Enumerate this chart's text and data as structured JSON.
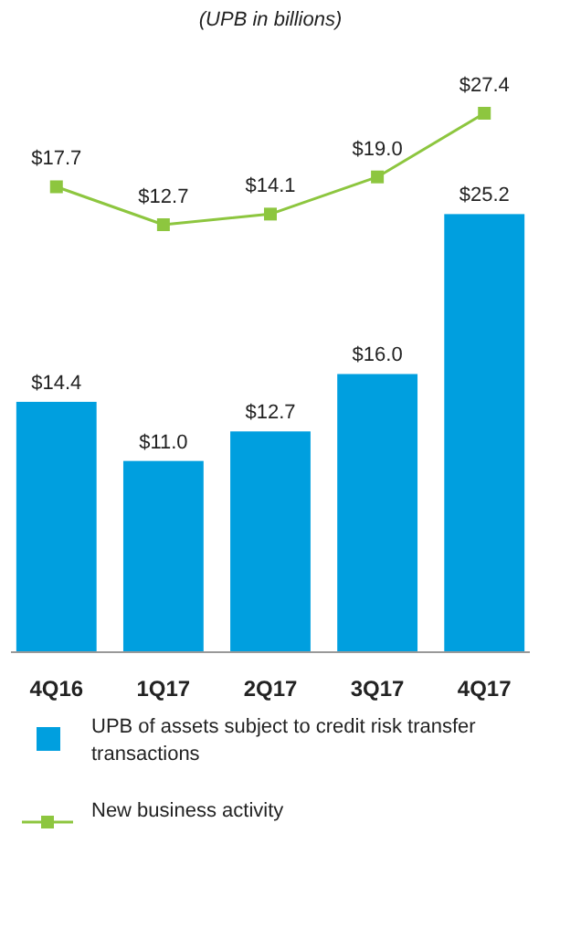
{
  "chart_data": {
    "type": "bar",
    "title": "(UPB in billions)",
    "categories": [
      "4Q16",
      "1Q17",
      "2Q17",
      "3Q17",
      "4Q17"
    ],
    "series": [
      {
        "name": "UPB of assets subject to credit risk transfer transactions",
        "color": "#009fdf",
        "values": [
          14.4,
          11.0,
          12.7,
          16.0,
          25.2
        ],
        "value_labels": [
          "$14.4",
          "$11.0",
          "$12.7",
          "$16.0",
          "$25.2"
        ]
      },
      {
        "name": "New business activity",
        "type": "line",
        "axis": "y2",
        "color": "#8dc63f",
        "values": [
          17.7,
          12.7,
          14.1,
          19.0,
          27.4
        ],
        "value_labels": [
          "$17.7",
          "$12.7",
          "$14.1",
          "$19.0",
          "$27.4"
        ]
      }
    ],
    "ylim": [
      0,
      31
    ],
    "y2lim": [
      -43.7,
      27.4
    ],
    "tick_labels": "x",
    "legend": "bottom",
    "marker": "square",
    "line_style": "solid"
  }
}
